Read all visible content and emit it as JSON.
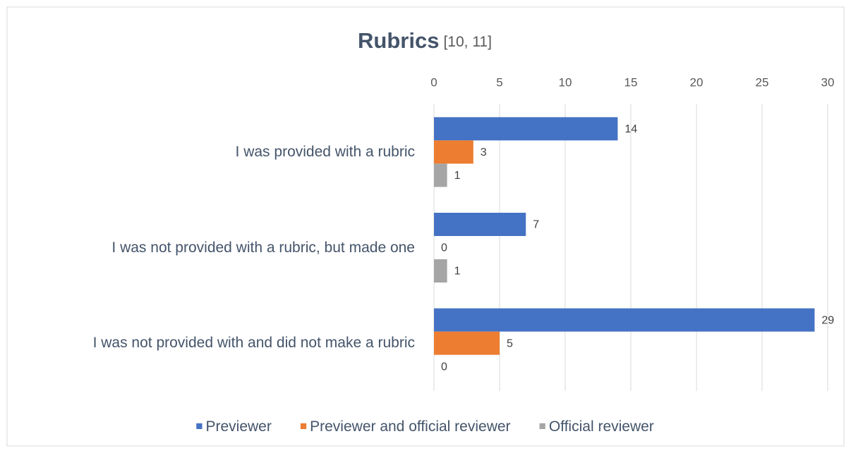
{
  "chart_data": {
    "type": "bar",
    "orientation": "horizontal",
    "title": "Rubrics",
    "subtitle": "[10, 11]",
    "categories": [
      "I was provided with a rubric",
      "I was not provided with a rubric, but made one",
      "I was not provided with and did not make a rubric"
    ],
    "series": [
      {
        "name": "Previewer",
        "color": "#4472c4",
        "values": [
          14,
          7,
          29
        ]
      },
      {
        "name": "Previewer and official reviewer",
        "color": "#ed7d31",
        "values": [
          3,
          0,
          5
        ]
      },
      {
        "name": "Official reviewer",
        "color": "#a5a5a5",
        "values": [
          1,
          1,
          0
        ]
      }
    ],
    "xlim": [
      0,
      30
    ],
    "xticks": [
      0,
      5,
      10,
      15,
      20,
      25,
      30
    ],
    "grid": true,
    "legend": "bottom"
  }
}
